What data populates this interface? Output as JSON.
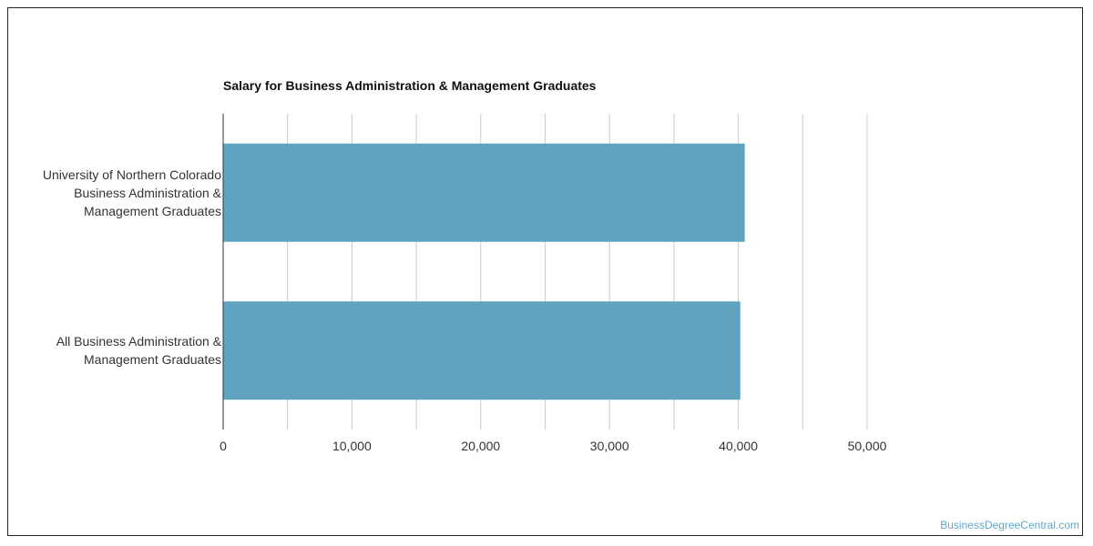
{
  "chart_data": {
    "type": "bar",
    "orientation": "horizontal",
    "title": "Salary for Business Administration & Management Graduates",
    "categories": [
      [
        "University of Northern Colorado",
        "Business Administration &",
        "Management Graduates"
      ],
      [
        "All Business Administration &",
        "Management Graduates"
      ]
    ],
    "values": [
      40500,
      40150
    ],
    "xlim": [
      0,
      50000
    ],
    "xticks": [
      0,
      10000,
      20000,
      30000,
      40000,
      50000
    ],
    "xtick_labels": [
      "0",
      "10,000",
      "20,000",
      "30,000",
      "40,000",
      "50,000"
    ],
    "grid": true,
    "bar_color": "#5fa3c0",
    "grid_color": "#cccccc"
  },
  "watermark": "BusinessDegreeCentral.com"
}
